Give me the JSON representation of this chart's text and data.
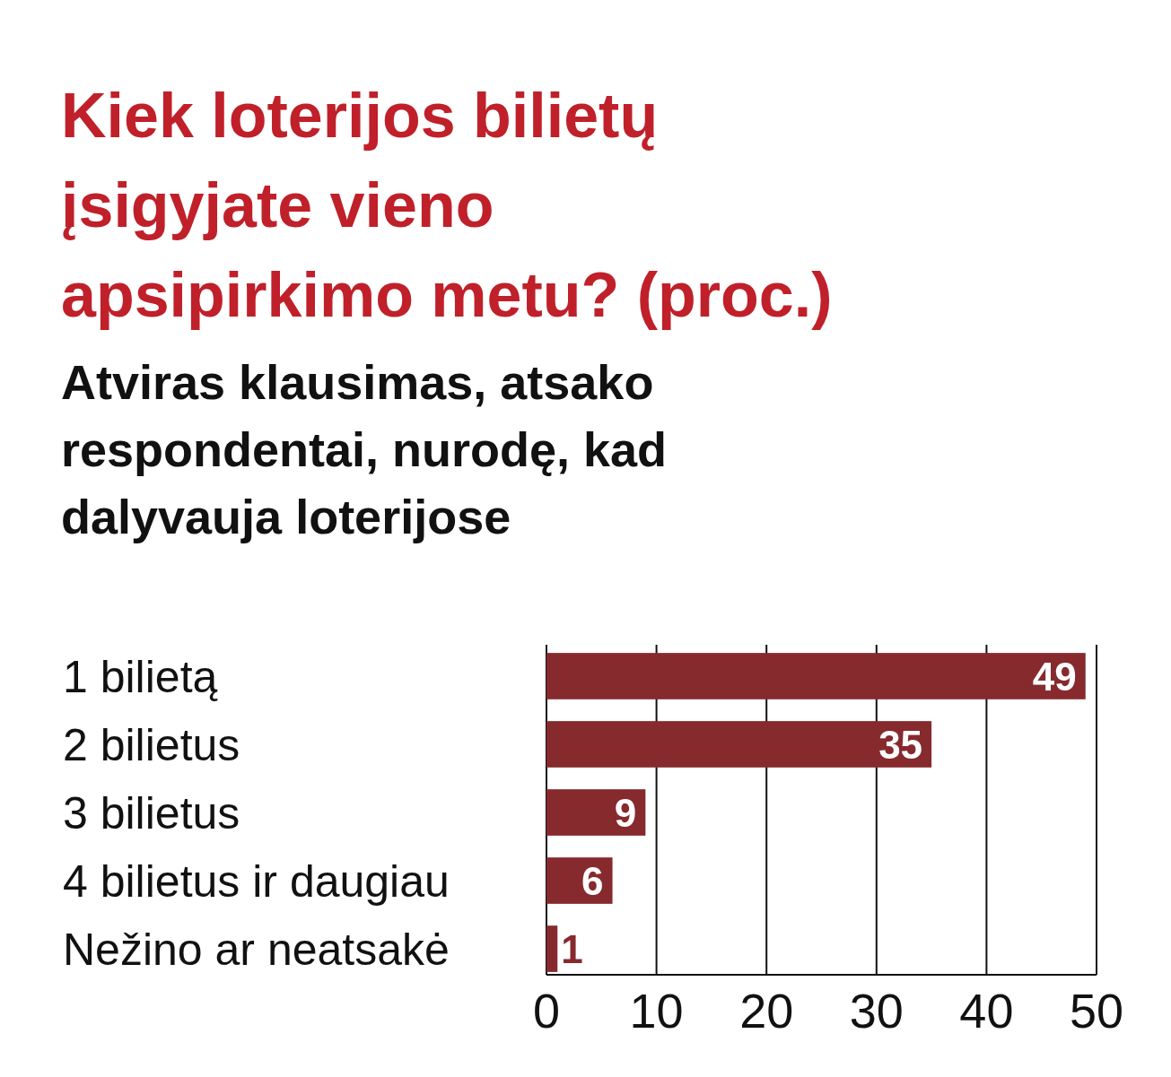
{
  "chart_data": {
    "type": "bar",
    "orientation": "horizontal",
    "title": "Kiek loterijos bilietų\nįsigyjate vieno\napsipirkimo metu? (proc.)",
    "subtitle": "Atviras klausimas, atsako\nrespondentai, nurodę, kad\ndalyvauja loterijose",
    "categories": [
      "1 bilietą",
      "2 bilietus",
      "3 bilietus",
      "4 bilietus ir daugiau",
      "Nežino ar neatsakė"
    ],
    "values": [
      49,
      35,
      9,
      6,
      1
    ],
    "color": "#862a2e",
    "xlim": [
      0,
      50
    ],
    "xticks": [
      0,
      10,
      20,
      30,
      40,
      50
    ],
    "grid": "x",
    "data_labels": true
  }
}
